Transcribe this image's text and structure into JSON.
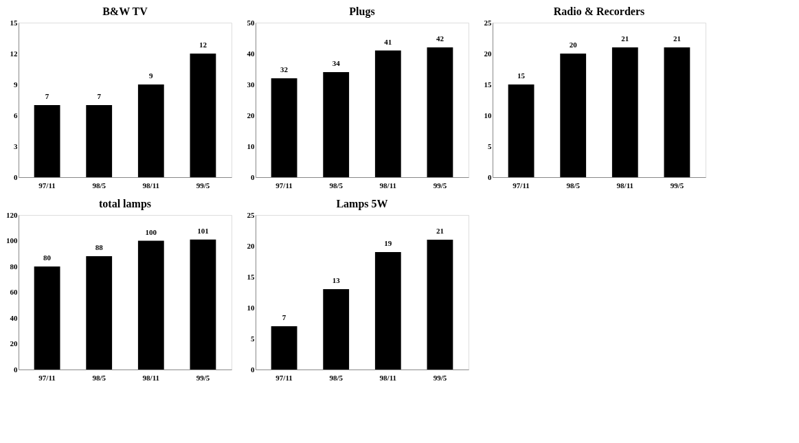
{
  "chart_data": [
    {
      "type": "bar",
      "title": "B&W TV",
      "categories": [
        "97/11",
        "98/5",
        "98/11",
        "99/5"
      ],
      "series": [
        {
          "color": "#000000",
          "values": [
            7,
            7,
            9,
            12
          ]
        }
      ],
      "ylim": [
        0,
        15
      ],
      "yticks": [
        0,
        3,
        6,
        9,
        12,
        15
      ],
      "data_labels": true,
      "grid": false
    },
    {
      "type": "bar",
      "title": "Plugs",
      "categories": [
        "97/11",
        "98/5",
        "98/11",
        "99/5"
      ],
      "series": [
        {
          "color": "#000000",
          "values": [
            32,
            34,
            41,
            42
          ]
        }
      ],
      "ylim": [
        0,
        50
      ],
      "yticks": [
        0,
        10,
        20,
        30,
        40,
        50
      ],
      "data_labels": true,
      "grid": false
    },
    {
      "type": "bar",
      "title": "Radio & Recorders",
      "categories": [
        "97/11",
        "98/5",
        "98/11",
        "99/5"
      ],
      "series": [
        {
          "color": "#000000",
          "values": [
            15,
            20,
            21,
            21
          ]
        }
      ],
      "ylim": [
        0,
        25
      ],
      "yticks": [
        0,
        5,
        10,
        15,
        20,
        25
      ],
      "data_labels": true,
      "grid": false
    },
    {
      "type": "bar",
      "title": "total lamps",
      "categories": [
        "97/11",
        "98/5",
        "98/11",
        "99/5"
      ],
      "series": [
        {
          "color": "#000000",
          "values": [
            80,
            88,
            100,
            101
          ]
        }
      ],
      "ylim": [
        0,
        120
      ],
      "yticks": [
        0,
        20,
        40,
        60,
        80,
        100,
        120
      ],
      "data_labels": true,
      "grid": false
    },
    {
      "type": "bar",
      "title": "Lamps 5W",
      "categories": [
        "97/11",
        "98/5",
        "98/11",
        "99/5"
      ],
      "series": [
        {
          "color": "#000000",
          "values": [
            7,
            13,
            19,
            21
          ]
        }
      ],
      "ylim": [
        0,
        25
      ],
      "yticks": [
        0,
        5,
        10,
        15,
        20,
        25
      ],
      "data_labels": true,
      "grid": false
    }
  ]
}
